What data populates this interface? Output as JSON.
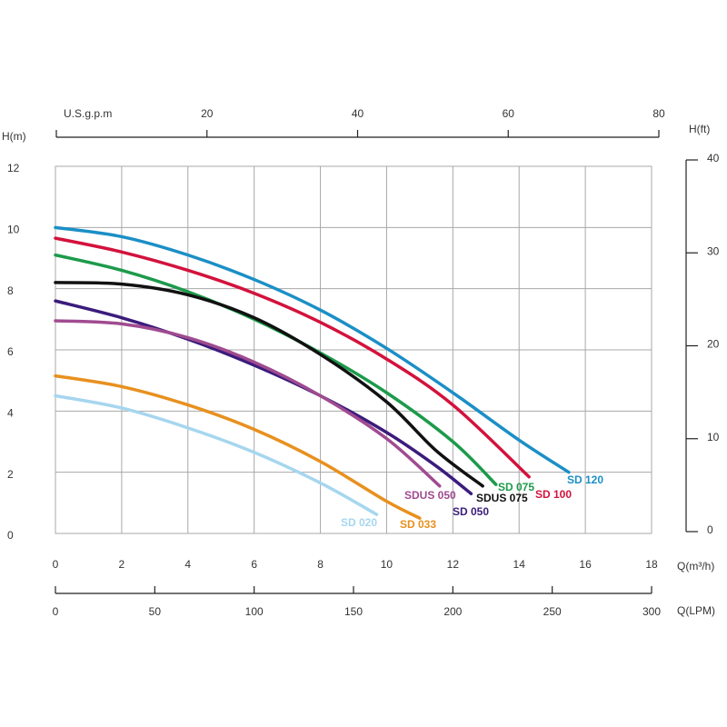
{
  "chart_data": {
    "type": "line",
    "x_label": "Q(m³/h)",
    "y_label": "H(m)",
    "xlim": [
      0,
      18
    ],
    "xticks": [
      0,
      2,
      4,
      6,
      8,
      10,
      12,
      14,
      16,
      18
    ],
    "ylim": [
      0,
      12
    ],
    "yticks": [
      0,
      2,
      4,
      6,
      8,
      10,
      12
    ],
    "grid": true,
    "y2_label": "H(ft)",
    "y2lim": [
      0,
      40
    ],
    "y2ticks": [
      0,
      10,
      20,
      30,
      40
    ],
    "top_axis": {
      "label": "U.S.g.p.m",
      "lim": [
        0,
        80
      ],
      "ticks": [
        20,
        40,
        60,
        80
      ]
    },
    "lpm_axis": {
      "label": "Q(LPM)",
      "lim": [
        0,
        300
      ],
      "ticks": [
        0,
        50,
        100,
        150,
        200,
        250,
        300
      ]
    },
    "series": [
      {
        "name": "SD 120",
        "color": "#1b8fc6",
        "x": [
          0,
          2,
          4,
          6,
          8,
          10,
          12,
          14,
          15.5
        ],
        "values": [
          10.0,
          9.7,
          9.1,
          8.3,
          7.3,
          6.05,
          4.6,
          3.05,
          2.0
        ]
      },
      {
        "name": "SD 100",
        "color": "#d3123c",
        "x": [
          0,
          2,
          4,
          6,
          8,
          10,
          12,
          14.3
        ],
        "values": [
          9.65,
          9.2,
          8.6,
          7.85,
          6.9,
          5.7,
          4.2,
          1.85
        ]
      },
      {
        "name": "SD 075",
        "color": "#1d9a4b",
        "x": [
          0,
          2,
          4,
          6,
          8,
          10,
          12,
          13.3
        ],
        "values": [
          9.1,
          8.6,
          7.9,
          7.0,
          5.9,
          4.6,
          3.0,
          1.6
        ]
      },
      {
        "name": "SDUS 075",
        "color": "#111111",
        "x": [
          0,
          2,
          4,
          6,
          8,
          10,
          11.5,
          12.9
        ],
        "values": [
          8.2,
          8.15,
          7.8,
          7.05,
          5.85,
          4.3,
          2.7,
          1.55
        ]
      },
      {
        "name": "SD 050",
        "color": "#3b1c7c",
        "x": [
          0,
          2,
          4,
          6,
          8,
          10,
          11.5,
          12.55
        ],
        "values": [
          7.6,
          7.05,
          6.35,
          5.5,
          4.5,
          3.3,
          2.2,
          1.3
        ]
      },
      {
        "name": "SDUS 050",
        "color": "#a04b90",
        "x": [
          0,
          2,
          4,
          6,
          8,
          10,
          11.6
        ],
        "values": [
          6.95,
          6.85,
          6.4,
          5.6,
          4.5,
          3.1,
          1.55
        ]
      },
      {
        "name": "SD 033",
        "color": "#e8901e",
        "x": [
          0,
          2,
          4,
          6,
          8,
          10,
          11.0
        ],
        "values": [
          5.15,
          4.8,
          4.2,
          3.4,
          2.35,
          1.05,
          0.5
        ]
      },
      {
        "name": "SD 020",
        "color": "#a6d6ef",
        "x": [
          0,
          2,
          4,
          6,
          8,
          9.7
        ],
        "values": [
          4.5,
          4.1,
          3.45,
          2.65,
          1.65,
          0.62
        ]
      }
    ]
  }
}
